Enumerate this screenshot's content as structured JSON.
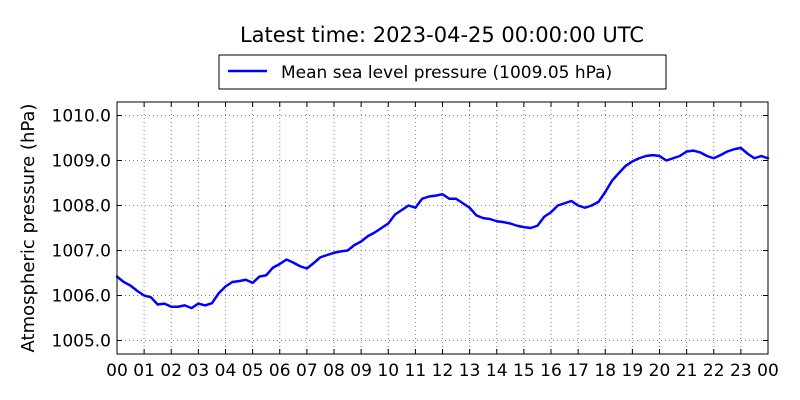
{
  "chart_data": {
    "type": "line",
    "title": "Latest time: 2023-04-25 00:00:00 UTC",
    "xlabel": "",
    "ylabel": "Atmospheric pressure (hPa)",
    "xlim": [
      0,
      24
    ],
    "ylim": [
      1004.7,
      1010.3
    ],
    "x_ticks": [
      0,
      1,
      2,
      3,
      4,
      5,
      6,
      7,
      8,
      9,
      10,
      11,
      12,
      13,
      14,
      15,
      16,
      17,
      18,
      19,
      20,
      21,
      22,
      23,
      24
    ],
    "x_tick_labels": [
      "00",
      "01",
      "02",
      "03",
      "04",
      "05",
      "06",
      "07",
      "08",
      "09",
      "10",
      "11",
      "12",
      "13",
      "14",
      "15",
      "16",
      "17",
      "18",
      "19",
      "20",
      "21",
      "22",
      "23",
      "00"
    ],
    "y_ticks": [
      1005.0,
      1006.0,
      1007.0,
      1008.0,
      1009.0,
      1010.0
    ],
    "y_tick_labels": [
      "1005.0",
      "1006.0",
      "1007.0",
      "1008.0",
      "1009.0",
      "1010.0"
    ],
    "grid": true,
    "legend_position": "top-center",
    "colors": {
      "series": "#0000ff",
      "axes": "#000000",
      "grid": "#7f7f7f"
    },
    "series": [
      {
        "name": "Mean sea level pressure (1009.05 hPa)",
        "x": [
          0,
          0.25,
          0.5,
          0.75,
          1.0,
          1.25,
          1.5,
          1.75,
          2.0,
          2.25,
          2.5,
          2.75,
          3.0,
          3.25,
          3.5,
          3.75,
          4.0,
          4.25,
          4.5,
          4.75,
          5.0,
          5.25,
          5.5,
          5.75,
          6.0,
          6.25,
          6.5,
          6.75,
          7.0,
          7.25,
          7.5,
          7.75,
          8.0,
          8.25,
          8.5,
          8.75,
          9.0,
          9.25,
          9.5,
          9.75,
          10.0,
          10.25,
          10.5,
          10.75,
          11.0,
          11.25,
          11.5,
          11.75,
          12.0,
          12.25,
          12.5,
          12.75,
          13.0,
          13.25,
          13.5,
          13.75,
          14.0,
          14.25,
          14.5,
          14.75,
          15.0,
          15.25,
          15.5,
          15.75,
          16.0,
          16.25,
          16.5,
          16.75,
          17.0,
          17.25,
          17.5,
          17.75,
          18.0,
          18.25,
          18.5,
          18.75,
          19.0,
          19.25,
          19.5,
          19.75,
          20.0,
          20.25,
          20.5,
          20.75,
          21.0,
          21.25,
          21.5,
          21.75,
          22.0,
          22.25,
          22.5,
          22.75,
          23.0,
          23.25,
          23.5,
          23.75,
          24.0
        ],
        "values": [
          1006.42,
          1006.3,
          1006.22,
          1006.1,
          1006.0,
          1005.96,
          1005.8,
          1005.82,
          1005.75,
          1005.75,
          1005.78,
          1005.72,
          1005.82,
          1005.78,
          1005.83,
          1006.05,
          1006.2,
          1006.3,
          1006.32,
          1006.35,
          1006.28,
          1006.42,
          1006.45,
          1006.62,
          1006.7,
          1006.8,
          1006.73,
          1006.65,
          1006.6,
          1006.72,
          1006.85,
          1006.9,
          1006.95,
          1006.98,
          1007.0,
          1007.12,
          1007.2,
          1007.32,
          1007.4,
          1007.5,
          1007.6,
          1007.8,
          1007.9,
          1008.0,
          1007.95,
          1008.15,
          1008.2,
          1008.22,
          1008.25,
          1008.15,
          1008.15,
          1008.05,
          1007.95,
          1007.78,
          1007.72,
          1007.7,
          1007.65,
          1007.63,
          1007.6,
          1007.55,
          1007.52,
          1007.5,
          1007.55,
          1007.75,
          1007.85,
          1008.0,
          1008.05,
          1008.1,
          1008.0,
          1007.95,
          1008.0,
          1008.08,
          1008.3,
          1008.55,
          1008.72,
          1008.88,
          1008.98,
          1009.05,
          1009.1,
          1009.12,
          1009.1,
          1009.0,
          1009.05,
          1009.1,
          1009.2,
          1009.22,
          1009.18,
          1009.1,
          1009.05,
          1009.12,
          1009.2,
          1009.25,
          1009.28,
          1009.15,
          1009.05,
          1009.1,
          1009.05
        ]
      }
    ]
  }
}
